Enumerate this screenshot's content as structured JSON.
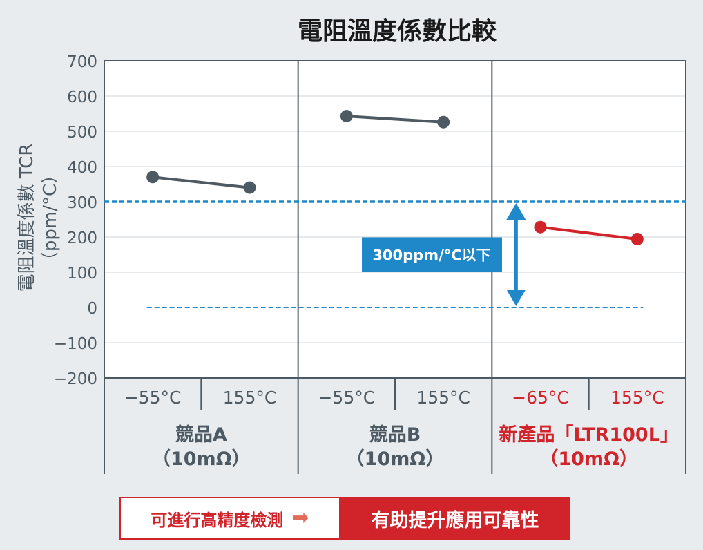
{
  "chart_data": {
    "type": "line",
    "title": "電阻溫度係數比較",
    "ylabel_line1": "電阻溫度係數 TCR",
    "ylabel_line2": "（ppm/°C）",
    "ylim": [
      -200,
      700
    ],
    "yticks": [
      700,
      600,
      500,
      400,
      300,
      200,
      100,
      0,
      -100,
      -200
    ],
    "ytick_labels": [
      "700",
      "600",
      "500",
      "400",
      "300",
      "200",
      "100",
      "0",
      "−100",
      "−200"
    ],
    "groups": [
      {
        "name_line1": "競品A",
        "name_line2": "（10mΩ）",
        "x_labels": [
          "−55°C",
          "155°C"
        ],
        "values": [
          370,
          340
        ],
        "color": "#4d5a63"
      },
      {
        "name_line1": "競品B",
        "name_line2": "（10mΩ）",
        "x_labels": [
          "−55°C",
          "155°C"
        ],
        "values": [
          543,
          526
        ],
        "color": "#4d5a63"
      },
      {
        "name_line1": "新產品「LTR100L」",
        "name_line2": "（10mΩ）",
        "x_labels": [
          "−65°C",
          "155°C"
        ],
        "values": [
          228,
          194
        ],
        "color": "#d1232a"
      }
    ],
    "threshold": {
      "value": 300,
      "label": "300ppm/°C以下",
      "color": "#1e88c8"
    },
    "grid": true
  },
  "colors": {
    "accent_blue": "#1e88c8",
    "accent_red": "#d1232a",
    "axis_text": "#4d5a63"
  },
  "banner": {
    "left_text": "可進行高精度檢測",
    "arrow_icon": "right-arrow-icon",
    "right_text": "有助提升應用可靠性"
  }
}
